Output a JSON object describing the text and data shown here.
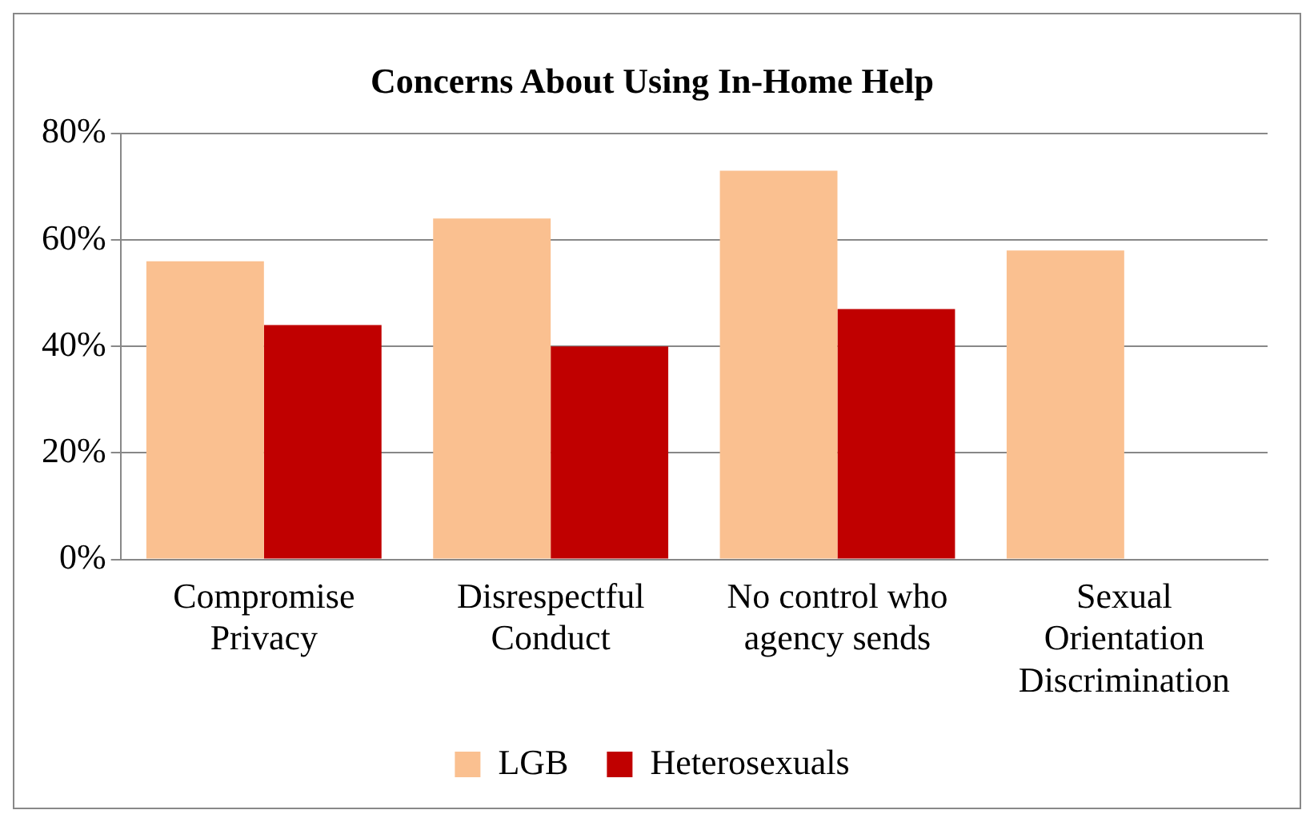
{
  "chart_data": {
    "type": "bar",
    "title": "Concerns About Using In-Home Help",
    "categories": [
      "Compromise Privacy",
      "Disrespectful Conduct",
      "No control who agency sends",
      "Sexual Orientation Discrimination"
    ],
    "series": [
      {
        "name": "LGB",
        "color": "#fac090",
        "values": [
          56,
          64,
          73,
          58
        ]
      },
      {
        "name": "Heterosexuals",
        "color": "#c00000",
        "values": [
          44,
          40,
          47,
          null
        ]
      }
    ],
    "ylim": [
      0,
      80
    ],
    "yticks": [
      {
        "value": 0,
        "label": "0%"
      },
      {
        "value": 20,
        "label": "20%"
      },
      {
        "value": 40,
        "label": "40%"
      },
      {
        "value": 60,
        "label": "60%"
      },
      {
        "value": 80,
        "label": "80%"
      }
    ],
    "grid": "y",
    "legend": "bottom"
  }
}
